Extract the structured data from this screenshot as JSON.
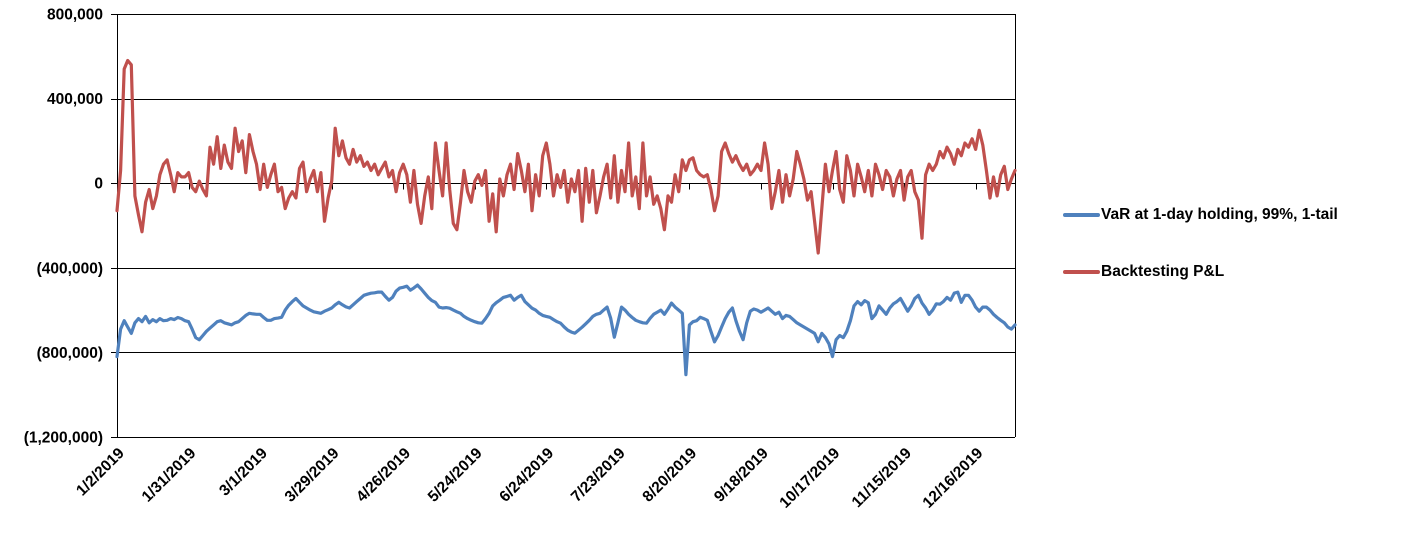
{
  "chart_data": {
    "type": "line",
    "title": "",
    "grid": "horizontal-major",
    "legend_position": "right",
    "background": "#ffffff",
    "gridline_color": "#000000",
    "x_axis": {
      "kind": "category-dates",
      "label_rotation_deg": 45,
      "tick_labels": [
        "1/2/2019",
        "1/31/2019",
        "3/1/2019",
        "3/29/2019",
        "4/26/2019",
        "5/24/2019",
        "6/24/2019",
        "7/23/2019",
        "8/20/2019",
        "9/18/2019",
        "10/17/2019",
        "11/15/2019",
        "12/16/2019"
      ],
      "tick_indices": [
        0,
        20,
        40,
        60,
        80,
        100,
        120,
        140,
        160,
        180,
        200,
        220,
        240
      ]
    },
    "y_axis": {
      "min": -1200000,
      "max": 800000,
      "tick_values": [
        800000,
        400000,
        0,
        -400000,
        -800000,
        -1200000
      ],
      "tick_labels": [
        "800,000",
        "400,000",
        "0",
        "(400,000)",
        "(800,000)",
        "(1,200,000)"
      ],
      "number_format": "#,##0;(#,##0)"
    },
    "series": [
      {
        "name": "VaR at 1-day holding, 99%, 1-tail",
        "color": "#4F81BD",
        "values": [
          -820000,
          -690000,
          -650000,
          -680000,
          -710000,
          -660000,
          -640000,
          -655000,
          -630000,
          -660000,
          -645000,
          -655000,
          -640000,
          -650000,
          -648000,
          -640000,
          -645000,
          -635000,
          -640000,
          -650000,
          -655000,
          -690000,
          -730000,
          -740000,
          -720000,
          -700000,
          -685000,
          -670000,
          -655000,
          -650000,
          -660000,
          -665000,
          -670000,
          -660000,
          -655000,
          -640000,
          -625000,
          -615000,
          -618000,
          -620000,
          -620000,
          -635000,
          -648000,
          -648000,
          -640000,
          -638000,
          -634000,
          -600000,
          -577000,
          -560000,
          -545000,
          -563000,
          -580000,
          -590000,
          -600000,
          -608000,
          -612000,
          -615000,
          -605000,
          -598000,
          -590000,
          -575000,
          -563000,
          -575000,
          -585000,
          -590000,
          -575000,
          -560000,
          -545000,
          -530000,
          -525000,
          -520000,
          -518000,
          -515000,
          -515000,
          -535000,
          -553000,
          -540000,
          -510000,
          -496000,
          -492000,
          -487000,
          -506000,
          -495000,
          -482000,
          -500000,
          -520000,
          -540000,
          -555000,
          -563000,
          -586000,
          -590000,
          -588000,
          -591000,
          -600000,
          -608000,
          -615000,
          -630000,
          -640000,
          -648000,
          -655000,
          -660000,
          -662000,
          -640000,
          -615000,
          -580000,
          -565000,
          -553000,
          -540000,
          -535000,
          -530000,
          -553000,
          -540000,
          -530000,
          -560000,
          -575000,
          -591000,
          -600000,
          -615000,
          -625000,
          -630000,
          -634000,
          -645000,
          -655000,
          -662000,
          -680000,
          -695000,
          -704000,
          -709000,
          -695000,
          -681000,
          -665000,
          -648000,
          -630000,
          -620000,
          -615000,
          -600000,
          -586000,
          -639000,
          -728000,
          -660000,
          -586000,
          -600000,
          -620000,
          -635000,
          -648000,
          -655000,
          -660000,
          -662000,
          -639000,
          -620000,
          -610000,
          -600000,
          -620000,
          -595000,
          -567000,
          -586000,
          -600000,
          -615000,
          -905000,
          -670000,
          -655000,
          -650000,
          -634000,
          -640000,
          -648000,
          -700000,
          -750000,
          -720000,
          -680000,
          -640000,
          -610000,
          -590000,
          -650000,
          -700000,
          -740000,
          -660000,
          -605000,
          -595000,
          -600000,
          -610000,
          -600000,
          -590000,
          -605000,
          -620000,
          -610000,
          -640000,
          -625000,
          -630000,
          -645000,
          -660000,
          -670000,
          -680000,
          -690000,
          -700000,
          -710000,
          -750000,
          -710000,
          -730000,
          -760000,
          -820000,
          -740000,
          -720000,
          -730000,
          -700000,
          -650000,
          -580000,
          -560000,
          -575000,
          -555000,
          -565000,
          -640000,
          -620000,
          -580000,
          -600000,
          -620000,
          -590000,
          -570000,
          -560000,
          -545000,
          -575000,
          -605000,
          -580000,
          -545000,
          -530000,
          -567000,
          -590000,
          -620000,
          -600000,
          -570000,
          -572000,
          -560000,
          -540000,
          -553000,
          -520000,
          -515000,
          -563000,
          -530000,
          -530000,
          -553000,
          -586000,
          -605000,
          -586000,
          -586000,
          -600000,
          -620000,
          -635000,
          -648000,
          -660000,
          -680000,
          -690000,
          -670000
        ]
      },
      {
        "name": "Backtesting P&L",
        "color": "#C0504D",
        "values": [
          -130000,
          60000,
          540000,
          580000,
          560000,
          -60000,
          -150000,
          -230000,
          -90000,
          -30000,
          -120000,
          -60000,
          40000,
          90000,
          110000,
          40000,
          -40000,
          50000,
          30000,
          30000,
          50000,
          -20000,
          -40000,
          10000,
          -30000,
          -60000,
          170000,
          90000,
          220000,
          70000,
          180000,
          100000,
          70000,
          260000,
          150000,
          200000,
          50000,
          230000,
          150000,
          90000,
          -30000,
          90000,
          -20000,
          40000,
          90000,
          -40000,
          -20000,
          -120000,
          -70000,
          -40000,
          -70000,
          70000,
          100000,
          -40000,
          20000,
          60000,
          -40000,
          50000,
          -180000,
          -70000,
          10000,
          260000,
          130000,
          200000,
          120000,
          90000,
          160000,
          100000,
          130000,
          80000,
          100000,
          60000,
          90000,
          40000,
          70000,
          100000,
          30000,
          60000,
          -40000,
          50000,
          90000,
          40000,
          -90000,
          60000,
          -100000,
          -190000,
          -60000,
          30000,
          -120000,
          190000,
          60000,
          -60000,
          190000,
          -30000,
          -190000,
          -220000,
          -90000,
          60000,
          -40000,
          -90000,
          10000,
          40000,
          -10000,
          60000,
          -180000,
          -50000,
          -230000,
          20000,
          -60000,
          40000,
          90000,
          -30000,
          140000,
          60000,
          -40000,
          90000,
          -130000,
          40000,
          -60000,
          130000,
          190000,
          90000,
          -60000,
          40000,
          -20000,
          60000,
          -90000,
          20000,
          -40000,
          60000,
          -180000,
          70000,
          -90000,
          60000,
          -140000,
          -60000,
          30000,
          90000,
          -70000,
          130000,
          -90000,
          60000,
          -40000,
          190000,
          -60000,
          30000,
          -120000,
          190000,
          -60000,
          30000,
          -100000,
          -60000,
          -120000,
          -220000,
          -60000,
          -90000,
          40000,
          -40000,
          110000,
          60000,
          110000,
          120000,
          60000,
          40000,
          30000,
          40000,
          -30000,
          -130000,
          -60000,
          150000,
          190000,
          140000,
          100000,
          130000,
          90000,
          60000,
          90000,
          40000,
          60000,
          90000,
          60000,
          190000,
          90000,
          -120000,
          -40000,
          60000,
          -90000,
          40000,
          -60000,
          20000,
          150000,
          90000,
          20000,
          -80000,
          -40000,
          -180000,
          -330000,
          -120000,
          90000,
          -40000,
          60000,
          150000,
          -30000,
          -90000,
          130000,
          60000,
          -60000,
          90000,
          30000,
          -40000,
          60000,
          -60000,
          90000,
          40000,
          -30000,
          60000,
          30000,
          -60000,
          20000,
          60000,
          -80000,
          30000,
          60000,
          -40000,
          -80000,
          -260000,
          40000,
          90000,
          60000,
          90000,
          150000,
          120000,
          170000,
          140000,
          90000,
          160000,
          130000,
          190000,
          170000,
          210000,
          160000,
          250000,
          180000,
          60000,
          -70000,
          30000,
          -60000,
          40000,
          80000,
          -30000,
          20000,
          60000
        ]
      }
    ]
  },
  "legend": {
    "var_label": "VaR at 1-day holding, 99%, 1-tail",
    "pnl_label": "Backtesting P&L"
  }
}
